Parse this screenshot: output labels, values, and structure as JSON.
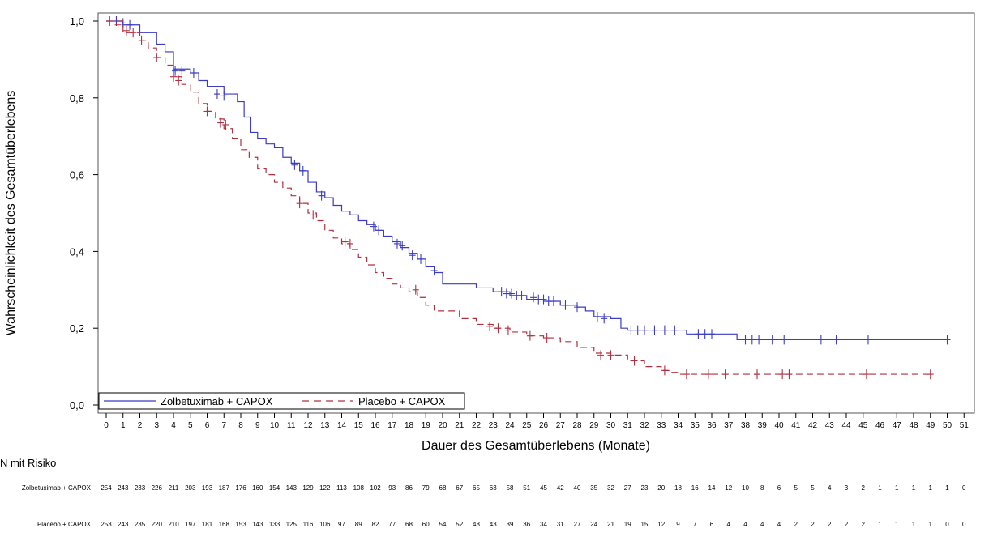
{
  "chart_data": {
    "type": "line",
    "title": "",
    "xlabel": "Dauer des Gesamtüberlebens (Monate)",
    "ylabel": "Wahrscheinlichkeit des Gesamtüberlebens",
    "xlim": [
      0,
      51
    ],
    "ylim": [
      0,
      1
    ],
    "x_ticks": [
      "0",
      "1",
      "2",
      "3",
      "4",
      "5",
      "6",
      "7",
      "8",
      "9",
      "10",
      "11",
      "12",
      "13",
      "14",
      "15",
      "16",
      "17",
      "18",
      "19",
      "20",
      "21",
      "22",
      "23",
      "24",
      "25",
      "26",
      "27",
      "28",
      "29",
      "30",
      "31",
      "32",
      "33",
      "34",
      "35",
      "36",
      "37",
      "38",
      "39",
      "40",
      "41",
      "42",
      "43",
      "44",
      "45",
      "46",
      "47",
      "48",
      "49",
      "50",
      "51"
    ],
    "y_ticks": [
      "0,0",
      "0,2",
      "0,4",
      "0,6",
      "0,8",
      "1,0"
    ],
    "y_tick_values": [
      0,
      0.2,
      0.4,
      0.6,
      0.8,
      1.0
    ],
    "legend_position": "bottom-left, inside plot",
    "series": [
      {
        "name": "Zolbetuximab + CAPOX",
        "color": "#3b3bc4",
        "dash": "solid",
        "points": [
          [
            0,
            1.0
          ],
          [
            1,
            0.99
          ],
          [
            2,
            0.97
          ],
          [
            3,
            0.94
          ],
          [
            3.5,
            0.92
          ],
          [
            4,
            0.875
          ],
          [
            5,
            0.865
          ],
          [
            5.5,
            0.845
          ],
          [
            6,
            0.83
          ],
          [
            7,
            0.81
          ],
          [
            7.8,
            0.79
          ],
          [
            8.2,
            0.75
          ],
          [
            8.6,
            0.71
          ],
          [
            9,
            0.695
          ],
          [
            9.5,
            0.68
          ],
          [
            10,
            0.67
          ],
          [
            10.5,
            0.645
          ],
          [
            11,
            0.63
          ],
          [
            11.5,
            0.61
          ],
          [
            12,
            0.58
          ],
          [
            12.5,
            0.555
          ],
          [
            13,
            0.54
          ],
          [
            13.5,
            0.52
          ],
          [
            14,
            0.505
          ],
          [
            14.5,
            0.495
          ],
          [
            15,
            0.48
          ],
          [
            15.5,
            0.47
          ],
          [
            16,
            0.455
          ],
          [
            16.5,
            0.44
          ],
          [
            17,
            0.425
          ],
          [
            17.5,
            0.41
          ],
          [
            18,
            0.395
          ],
          [
            18.5,
            0.38
          ],
          [
            19,
            0.36
          ],
          [
            19.5,
            0.345
          ],
          [
            20,
            0.315
          ],
          [
            21,
            0.315
          ],
          [
            22,
            0.305
          ],
          [
            23,
            0.295
          ],
          [
            24,
            0.285
          ],
          [
            25,
            0.275
          ],
          [
            26,
            0.27
          ],
          [
            27,
            0.26
          ],
          [
            28,
            0.255
          ],
          [
            28.5,
            0.245
          ],
          [
            29,
            0.23
          ],
          [
            30,
            0.225
          ],
          [
            30.6,
            0.2
          ],
          [
            31,
            0.195
          ],
          [
            33,
            0.195
          ],
          [
            34,
            0.195
          ],
          [
            34.5,
            0.185
          ],
          [
            36,
            0.185
          ],
          [
            37,
            0.185
          ],
          [
            37.5,
            0.17
          ],
          [
            40,
            0.17
          ],
          [
            45,
            0.17
          ],
          [
            50,
            0.17
          ]
        ],
        "censor_marks": [
          [
            0.2,
            1.0
          ],
          [
            0.6,
            1.0
          ],
          [
            1.0,
            0.995
          ],
          [
            1.4,
            0.99
          ],
          [
            4.1,
            0.87
          ],
          [
            4.5,
            0.87
          ],
          [
            5.2,
            0.865
          ],
          [
            6.6,
            0.81
          ],
          [
            7.0,
            0.805
          ],
          [
            11.2,
            0.625
          ],
          [
            11.7,
            0.61
          ],
          [
            12.8,
            0.545
          ],
          [
            15.9,
            0.465
          ],
          [
            16.2,
            0.455
          ],
          [
            17.3,
            0.42
          ],
          [
            17.6,
            0.415
          ],
          [
            18.2,
            0.39
          ],
          [
            18.7,
            0.38
          ],
          [
            19.5,
            0.35
          ],
          [
            23.5,
            0.295
          ],
          [
            23.8,
            0.29
          ],
          [
            24.1,
            0.29
          ],
          [
            24.4,
            0.285
          ],
          [
            24.7,
            0.285
          ],
          [
            25.4,
            0.28
          ],
          [
            25.7,
            0.275
          ],
          [
            26.0,
            0.275
          ],
          [
            26.3,
            0.27
          ],
          [
            26.6,
            0.27
          ],
          [
            27.3,
            0.26
          ],
          [
            28.0,
            0.255
          ],
          [
            29.2,
            0.23
          ],
          [
            29.6,
            0.225
          ],
          [
            31.2,
            0.195
          ],
          [
            31.6,
            0.195
          ],
          [
            32.0,
            0.195
          ],
          [
            32.6,
            0.195
          ],
          [
            33.2,
            0.195
          ],
          [
            33.8,
            0.195
          ],
          [
            35.2,
            0.185
          ],
          [
            35.6,
            0.185
          ],
          [
            36.0,
            0.185
          ],
          [
            38.0,
            0.17
          ],
          [
            38.4,
            0.17
          ],
          [
            38.8,
            0.17
          ],
          [
            39.6,
            0.17
          ],
          [
            40.3,
            0.17
          ],
          [
            42.5,
            0.17
          ],
          [
            43.4,
            0.17
          ],
          [
            45.3,
            0.17
          ],
          [
            50.0,
            0.17
          ]
        ]
      },
      {
        "name": "Placebo + CAPOX",
        "color": "#b03040",
        "dash": "dashed",
        "points": [
          [
            0,
            1.0
          ],
          [
            1,
            0.97
          ],
          [
            2,
            0.95
          ],
          [
            2.5,
            0.93
          ],
          [
            3,
            0.905
          ],
          [
            3.5,
            0.885
          ],
          [
            4,
            0.855
          ],
          [
            4.5,
            0.835
          ],
          [
            5,
            0.815
          ],
          [
            5.5,
            0.785
          ],
          [
            6,
            0.765
          ],
          [
            6.5,
            0.745
          ],
          [
            7,
            0.72
          ],
          [
            7.5,
            0.695
          ],
          [
            8,
            0.665
          ],
          [
            8.5,
            0.645
          ],
          [
            9,
            0.615
          ],
          [
            9.5,
            0.6
          ],
          [
            10,
            0.58
          ],
          [
            10.5,
            0.565
          ],
          [
            11,
            0.545
          ],
          [
            11.5,
            0.525
          ],
          [
            12,
            0.5
          ],
          [
            12.5,
            0.48
          ],
          [
            13,
            0.455
          ],
          [
            13.5,
            0.435
          ],
          [
            14,
            0.42
          ],
          [
            14.5,
            0.405
          ],
          [
            15,
            0.385
          ],
          [
            15.5,
            0.365
          ],
          [
            16,
            0.345
          ],
          [
            16.5,
            0.33
          ],
          [
            17,
            0.315
          ],
          [
            17.5,
            0.305
          ],
          [
            18,
            0.295
          ],
          [
            18.5,
            0.28
          ],
          [
            19,
            0.26
          ],
          [
            19.5,
            0.245
          ],
          [
            20,
            0.245
          ],
          [
            21,
            0.225
          ],
          [
            22,
            0.21
          ],
          [
            23,
            0.2
          ],
          [
            24,
            0.19
          ],
          [
            25,
            0.18
          ],
          [
            26,
            0.175
          ],
          [
            27,
            0.165
          ],
          [
            28,
            0.15
          ],
          [
            29,
            0.135
          ],
          [
            30,
            0.13
          ],
          [
            31,
            0.115
          ],
          [
            32,
            0.1
          ],
          [
            33,
            0.09
          ],
          [
            33.5,
            0.085
          ],
          [
            34,
            0.08
          ],
          [
            35,
            0.08
          ],
          [
            40,
            0.08
          ],
          [
            45,
            0.08
          ],
          [
            49,
            0.08
          ]
        ],
        "censor_marks": [
          [
            0.2,
            1.0
          ],
          [
            0.7,
            0.99
          ],
          [
            1.2,
            0.975
          ],
          [
            1.6,
            0.97
          ],
          [
            2.1,
            0.95
          ],
          [
            3.0,
            0.905
          ],
          [
            4.0,
            0.855
          ],
          [
            4.3,
            0.845
          ],
          [
            6.0,
            0.765
          ],
          [
            6.8,
            0.735
          ],
          [
            7.1,
            0.73
          ],
          [
            11.5,
            0.525
          ],
          [
            12.3,
            0.495
          ],
          [
            14.2,
            0.425
          ],
          [
            14.5,
            0.42
          ],
          [
            18.4,
            0.3
          ],
          [
            22.8,
            0.205
          ],
          [
            23.3,
            0.2
          ],
          [
            23.9,
            0.195
          ],
          [
            25.2,
            0.18
          ],
          [
            26.2,
            0.175
          ],
          [
            29.4,
            0.13
          ],
          [
            30.0,
            0.13
          ],
          [
            31.4,
            0.115
          ],
          [
            33.2,
            0.09
          ],
          [
            34.5,
            0.08
          ],
          [
            35.8,
            0.08
          ],
          [
            36.8,
            0.08
          ],
          [
            38.7,
            0.08
          ],
          [
            40.2,
            0.08
          ],
          [
            40.6,
            0.08
          ],
          [
            45.2,
            0.08
          ],
          [
            49.0,
            0.08
          ]
        ]
      }
    ]
  },
  "risk_table": {
    "title": "N mit Risiko",
    "rows": [
      {
        "label": "Zolbetuximab + CAPOX",
        "values": [
          "254",
          "243",
          "233",
          "226",
          "211",
          "203",
          "193",
          "187",
          "176",
          "160",
          "154",
          "143",
          "129",
          "122",
          "113",
          "108",
          "102",
          "93",
          "86",
          "79",
          "68",
          "67",
          "65",
          "63",
          "58",
          "51",
          "45",
          "42",
          "40",
          "35",
          "32",
          "27",
          "23",
          "20",
          "18",
          "16",
          "14",
          "12",
          "10",
          "8",
          "6",
          "5",
          "5",
          "4",
          "3",
          "2",
          "1",
          "1",
          "1",
          "1",
          "1",
          "0"
        ]
      },
      {
        "label": "Placebo + CAPOX",
        "values": [
          "253",
          "243",
          "235",
          "220",
          "210",
          "197",
          "181",
          "168",
          "153",
          "143",
          "133",
          "125",
          "116",
          "106",
          "97",
          "89",
          "82",
          "77",
          "68",
          "60",
          "54",
          "52",
          "48",
          "43",
          "39",
          "36",
          "34",
          "31",
          "27",
          "24",
          "21",
          "19",
          "15",
          "12",
          "9",
          "7",
          "6",
          "4",
          "4",
          "4",
          "4",
          "2",
          "2",
          "2",
          "2",
          "2",
          "1",
          "1",
          "1",
          "1",
          "0",
          "0"
        ]
      }
    ]
  }
}
